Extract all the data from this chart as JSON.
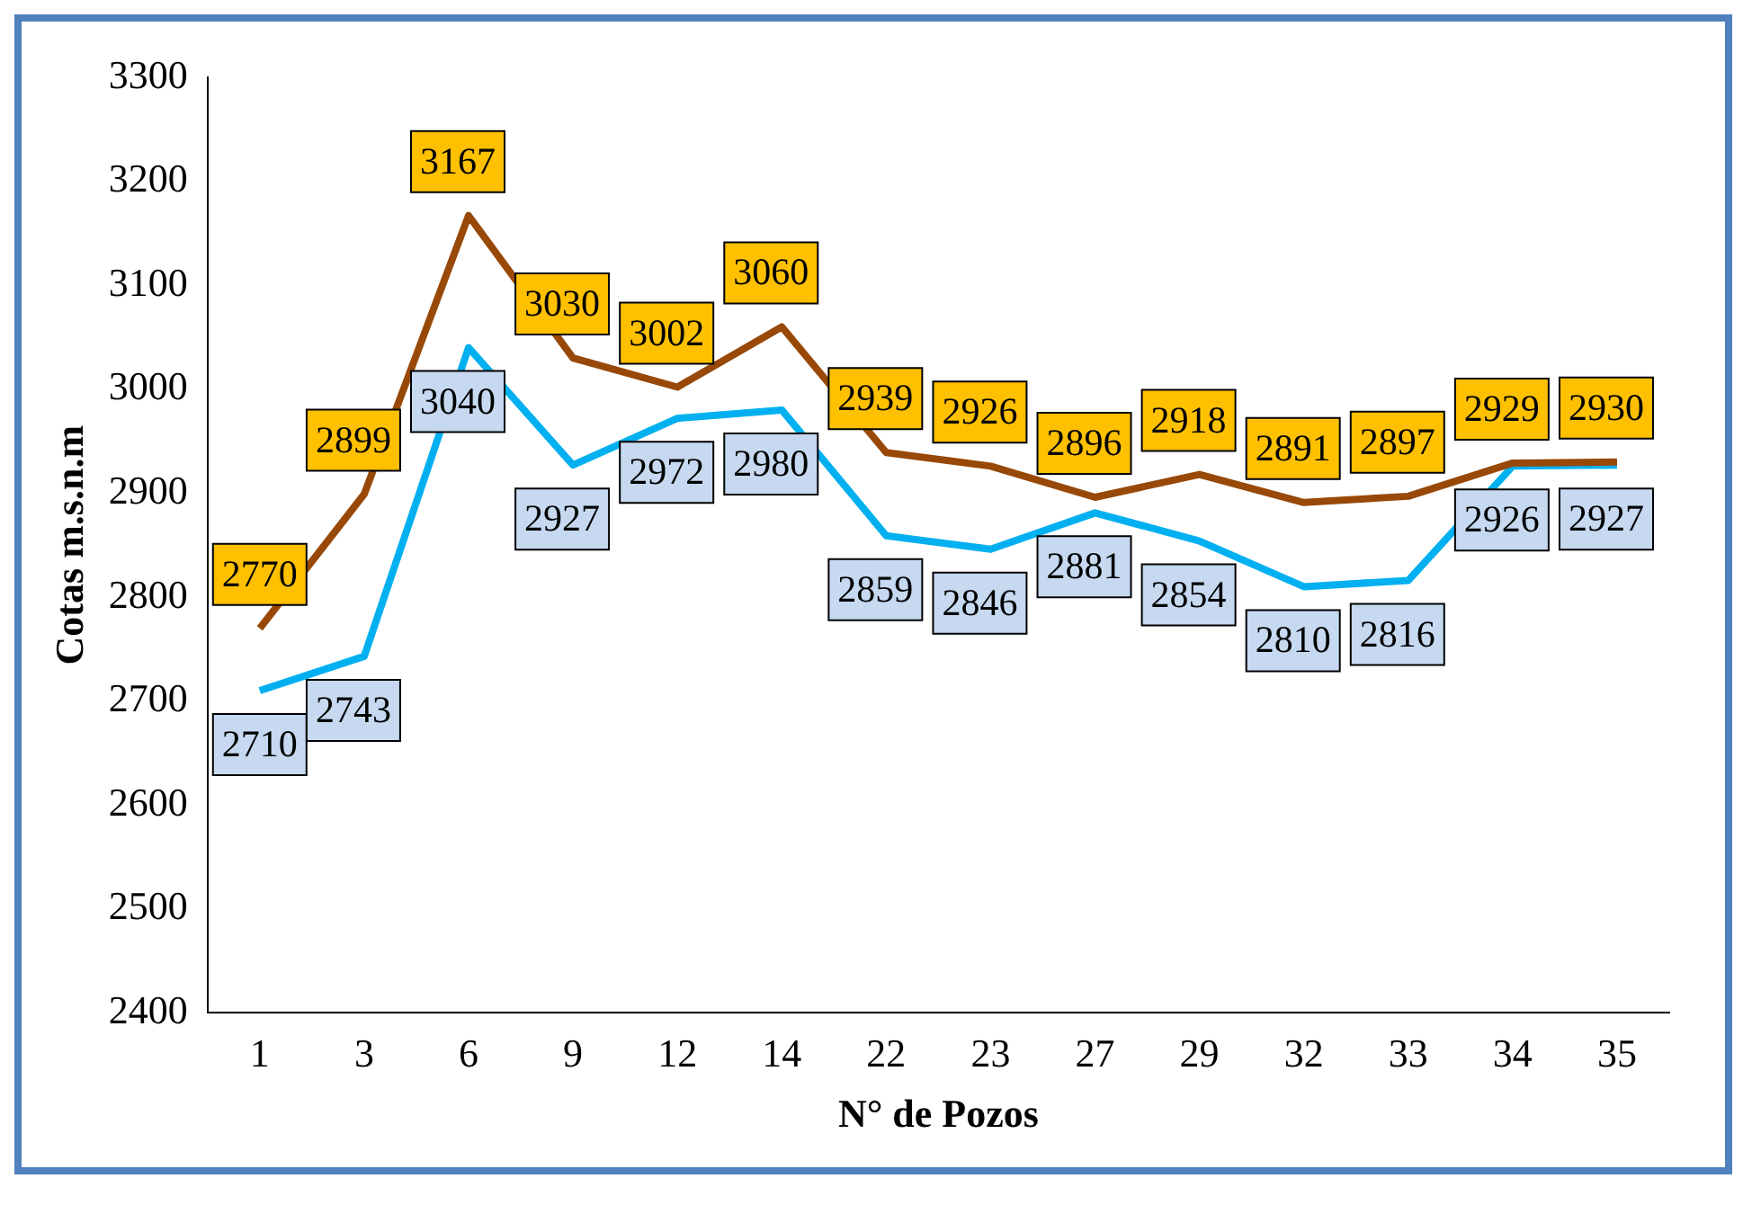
{
  "chart_data": {
    "type": "line",
    "xlabel": "N° de Pozos",
    "ylabel": "Cotas m.s.n.m",
    "categories": [
      "1",
      "3",
      "6",
      "9",
      "12",
      "14",
      "22",
      "23",
      "27",
      "29",
      "32",
      "33",
      "34",
      "35"
    ],
    "series": [
      {
        "color": "#984807",
        "values": [
          2770,
          2899,
          3167,
          3030,
          3002,
          3060,
          2939,
          2926,
          2896,
          2918,
          2891,
          2897,
          2929,
          2930
        ]
      },
      {
        "color": "#00b0f0",
        "values": [
          2710,
          2743,
          3040,
          2927,
          2972,
          2980,
          2859,
          2846,
          2881,
          2854,
          2810,
          2816,
          2926,
          2927
        ]
      }
    ],
    "ylim": [
      2400,
      3300
    ],
    "yticks": [
      2400,
      2500,
      2600,
      2700,
      2800,
      2900,
      3000,
      3100,
      3200,
      3300
    ],
    "grid": false,
    "legend": false,
    "marker": "none",
    "line_style": "solid",
    "data_labels": true
  }
}
